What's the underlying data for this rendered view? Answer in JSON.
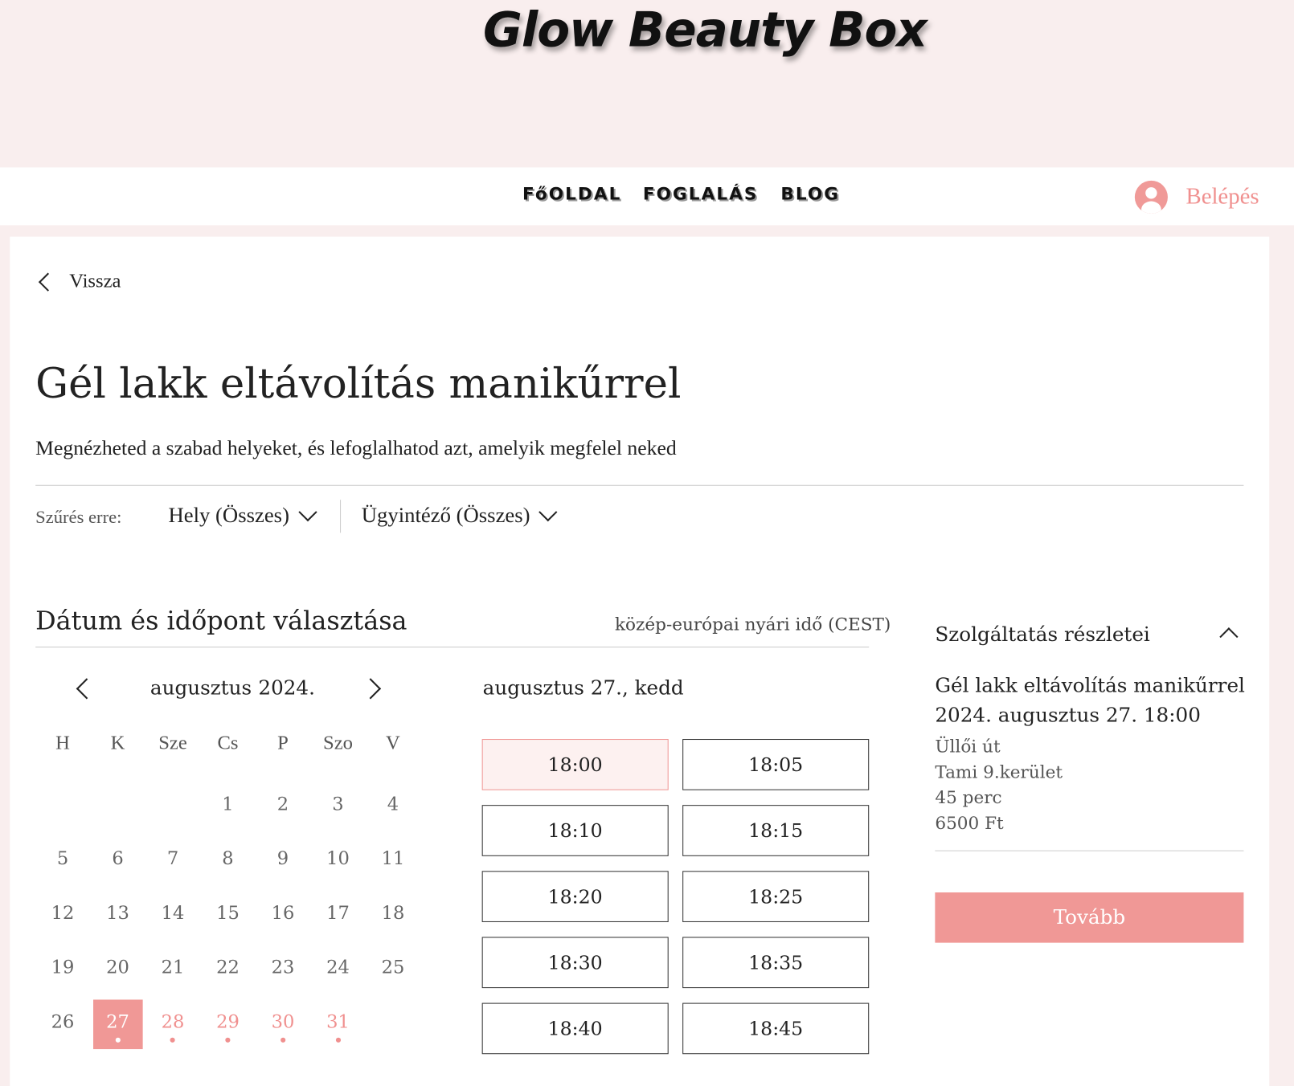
{
  "site": {
    "logo": "Glow Beauty Box"
  },
  "nav": {
    "items": [
      "FőOLDAL",
      "FOGLALÁS",
      "BLOG"
    ],
    "login": "Belépés"
  },
  "page": {
    "back": "Vissza",
    "title": "Gél lakk eltávolítás manikűrrel",
    "subtitle": "Megnézheted a szabad helyeket, és lefoglalhatod azt, amelyik megfelel neked"
  },
  "filters": {
    "label": "Szűrés erre:",
    "location": "Hely (Összes)",
    "staff": "Ügyintéző (Összes)"
  },
  "picker": {
    "heading": "Dátum és időpont választása",
    "timezone": "közép-európai nyári idő (CEST)",
    "month": "augusztus",
    "year": "2024.",
    "selected_date_label": "augusztus 27., kedd",
    "weekdays": [
      "H",
      "K",
      "Sze",
      "Cs",
      "P",
      "Szo",
      "V"
    ],
    "first_weekday_offset": 3,
    "days_in_month": 31,
    "selected_day": 27,
    "available_days": [
      27,
      28,
      29,
      30,
      31
    ],
    "slots": [
      "18:00",
      "18:05",
      "18:10",
      "18:15",
      "18:20",
      "18:25",
      "18:30",
      "18:35",
      "18:40",
      "18:45"
    ],
    "selected_slot": "18:00"
  },
  "details": {
    "heading": "Szolgáltatás részletei",
    "service": "Gél lakk eltávolítás manikűrrel",
    "datetime": "2024. augusztus 27. 18:00",
    "address": "Üllői út",
    "staff": "Tami 9.kerület",
    "duration": "45 perc",
    "price": "6500 Ft",
    "next": "Tovább"
  },
  "colors": {
    "accent": "#f09896",
    "header_bg": "#f9eeee"
  }
}
